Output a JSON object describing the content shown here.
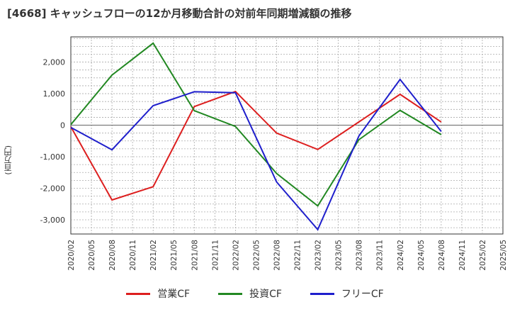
{
  "title": "[4668]  キャッシュフローの12か月移動合計の対前年同期増減額の推移",
  "chart_data": {
    "type": "line",
    "title": "[4668]  キャッシュフローの12か月移動合計の対前年同期増減額の推移",
    "ylabel": "(百万円)",
    "xlabel": "",
    "categories": [
      "2020/02",
      "2020/05",
      "2020/08",
      "2020/11",
      "2021/02",
      "2021/05",
      "2021/08",
      "2021/11",
      "2022/02",
      "2022/05",
      "2022/08",
      "2022/11",
      "2023/02",
      "2023/05",
      "2023/08",
      "2023/11",
      "2024/02",
      "2024/05",
      "2024/08",
      "2024/11",
      "2025/02",
      "2025/05"
    ],
    "yticks": [
      2000,
      1000,
      0,
      -1000,
      -2000,
      -3000
    ],
    "ytick_labels": [
      "2,000",
      "1,000",
      "0",
      "-1,000",
      "-2,000",
      "-3,000"
    ],
    "ylim": [
      -3450,
      2800
    ],
    "grid": true,
    "legend_position": "bottom",
    "series": [
      {
        "name": "営業CF",
        "color": "#dd1f1f",
        "values": [
          -50,
          null,
          -2370,
          null,
          -1950,
          null,
          590,
          null,
          1070,
          null,
          -250,
          null,
          -770,
          null,
          null,
          null,
          980,
          null,
          100,
          null,
          null,
          null
        ]
      },
      {
        "name": "投資CF",
        "color": "#228822",
        "values": [
          20,
          null,
          1590,
          null,
          2600,
          null,
          460,
          null,
          -40,
          null,
          -1530,
          null,
          -2560,
          null,
          -460,
          null,
          470,
          null,
          -300,
          null,
          null,
          null
        ]
      },
      {
        "name": "フリーCF",
        "color": "#1f1fcc",
        "values": [
          -70,
          null,
          -780,
          null,
          620,
          null,
          1060,
          null,
          1030,
          null,
          -1800,
          null,
          -3310,
          null,
          -340,
          null,
          1450,
          null,
          -200,
          null,
          null,
          null
        ]
      }
    ]
  }
}
